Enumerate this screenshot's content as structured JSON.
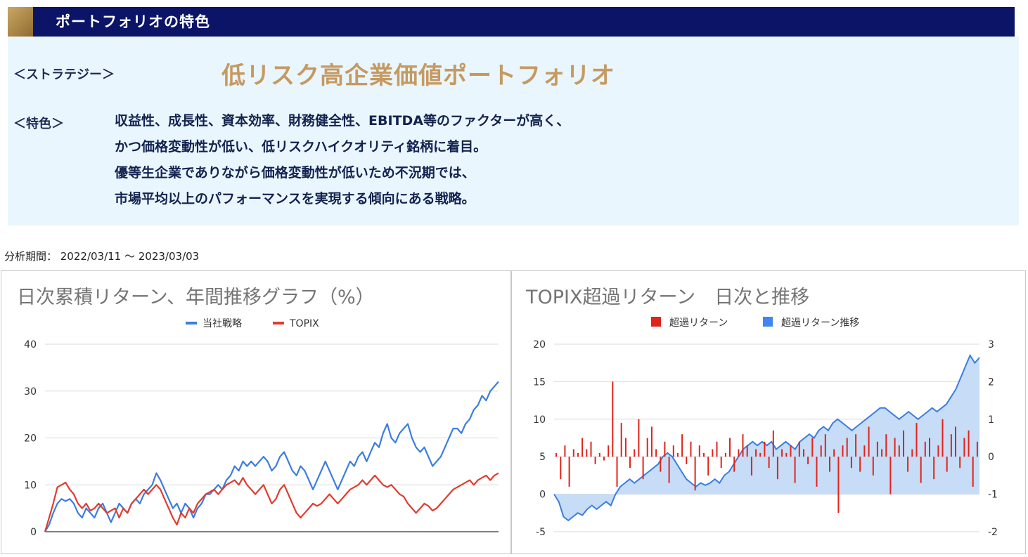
{
  "header": {
    "title": "ポートフォリオの特色"
  },
  "strategy": {
    "label": "＜ストラテジー＞",
    "name": "低リスク高企業価値ポートフォリオ"
  },
  "features": {
    "label": "＜特色＞",
    "lines": [
      "収益性、成長性、資本効率、財務健全性、EBITDA等のファクターが高く、",
      "かつ価格変動性が低い、低リスクハイクオリティ銘柄に着目。",
      "優等生企業でありながら価格変動性が低いため不況期では、",
      "市場平均以上のパフォーマンスを実現する傾向にある戦略。"
    ]
  },
  "period": "分析期間： 2022/03/11 ～ 2023/03/03",
  "colors": {
    "strategy_line": "#3b7de0",
    "topix_line": "#e23b2e",
    "excess_bar": "#e0241a",
    "excess_area_fill": "#c6dcf7",
    "excess_area_line": "#3b7de0",
    "header_bg": "#0b1466",
    "accent_gold": "#c59a62"
  },
  "chart_data": [
    {
      "type": "line",
      "title": "日次累積リターン、年間推移グラフ（%）",
      "legend_position": "top",
      "grid": true,
      "ylim": [
        0,
        40
      ],
      "yticks": [
        0,
        10,
        20,
        30,
        40
      ],
      "series": [
        {
          "name": "当社戦略",
          "values": [
            0,
            1.5,
            4,
            6,
            7,
            6.5,
            7,
            6,
            4,
            3,
            5,
            4,
            3,
            5,
            6,
            4,
            2,
            4,
            6,
            5,
            4,
            6,
            7,
            6,
            8,
            9,
            10,
            12.5,
            11,
            9,
            7,
            5,
            6,
            4,
            6,
            5,
            3,
            5,
            6,
            8,
            8,
            9,
            10,
            9,
            11,
            12,
            14,
            13,
            15,
            14,
            15,
            14,
            15,
            16,
            15,
            13,
            14,
            16,
            17,
            15,
            13,
            12,
            14,
            13,
            11,
            9,
            11,
            13,
            15,
            13,
            11,
            9,
            11,
            13,
            15,
            14,
            16,
            17,
            15,
            17,
            19,
            18,
            21,
            23,
            20,
            19,
            21,
            22,
            23,
            20,
            18,
            17,
            18,
            16,
            14,
            15,
            16,
            18,
            20,
            22,
            22,
            21,
            23,
            24,
            26,
            27,
            29,
            28,
            30,
            31,
            32
          ]
        },
        {
          "name": "TOPIX",
          "values": [
            0,
            3,
            6,
            9.5,
            10,
            10.5,
            9,
            8,
            6,
            5,
            6,
            4.5,
            5,
            6,
            5,
            4,
            4.5,
            5,
            3,
            5,
            4,
            6,
            7,
            8,
            9,
            8,
            9,
            10,
            9,
            7,
            5,
            3,
            1.5,
            4,
            3,
            5,
            4,
            6,
            7,
            8,
            8.5,
            9,
            8,
            9,
            10,
            10.5,
            11,
            10,
            11.5,
            10,
            9,
            8,
            9,
            10,
            8,
            6,
            7,
            9,
            10,
            8,
            6,
            4,
            3,
            4,
            5,
            6,
            5.5,
            6,
            7,
            8,
            7,
            6,
            7,
            8,
            9,
            9.5,
            10,
            11,
            10,
            11,
            12,
            11,
            10,
            9.5,
            10,
            9,
            8,
            7.5,
            6,
            5,
            4,
            5,
            6,
            5.5,
            4.5,
            5,
            6,
            7,
            8,
            9,
            9.5,
            10,
            10.5,
            11,
            10,
            11,
            11.5,
            12,
            11,
            12,
            12.5
          ]
        }
      ]
    },
    {
      "type": "bar",
      "title": "TOPIX超過リターン　日次と推移",
      "legend_position": "top",
      "grid": true,
      "ylim_left": [
        -5,
        20
      ],
      "yticks_left": [
        -5,
        0,
        5,
        10,
        15,
        20
      ],
      "ylim_right": [
        -2,
        3
      ],
      "yticks_right": [
        -2,
        -1,
        0,
        1,
        2,
        3
      ],
      "series": [
        {
          "name": "超過リターン",
          "axis": "right",
          "values": [
            0.1,
            -0.6,
            0.3,
            -0.8,
            0.2,
            0.1,
            0.5,
            0.2,
            0.4,
            -0.2,
            0.1,
            -0.1,
            0.3,
            2.0,
            -0.8,
            0.9,
            0.5,
            -0.3,
            0.2,
            1.0,
            -0.6,
            0.5,
            0.8,
            0.2,
            -0.4,
            0.4,
            -0.7,
            0.3,
            0.1,
            0.6,
            -0.2,
            0.4,
            -0.9,
            0.3,
            0.1,
            -0.5,
            0.2,
            0.4,
            -0.3,
            0.1,
            0.5,
            -0.4,
            0.2,
            0.6,
            0.3,
            -0.5,
            0.2,
            0.1,
            0.4,
            -0.3,
            0.7,
            -0.6,
            0.2,
            0.1,
            0.3,
            -0.7,
            0.4,
            0.2,
            -0.2,
            0.5,
            -0.8,
            0.3,
            0.6,
            -0.4,
            0.2,
            -1.5,
            0.3,
            0.5,
            -0.3,
            0.6,
            -0.4,
            0.3,
            0.8,
            -0.5,
            0.4,
            0.2,
            0.6,
            -1.0,
            0.5,
            0.3,
            0.7,
            -0.4,
            0.2,
            0.9,
            -0.7,
            0.4,
            0.5,
            -0.6,
            0.3,
            1.0,
            -0.4,
            0.6,
            0.8,
            -0.3,
            0.5,
            0.7,
            -0.8,
            0.4
          ]
        },
        {
          "name": "超過リターン推移",
          "axis": "left",
          "type": "area",
          "values": [
            0,
            -1,
            -3,
            -3.5,
            -3,
            -2.5,
            -2.8,
            -2,
            -1.5,
            -2,
            -1.5,
            -1,
            -1.5,
            0,
            1,
            1.5,
            2,
            1.5,
            2,
            2.5,
            3,
            3.5,
            4,
            5,
            5.5,
            5,
            4,
            3,
            2,
            1.5,
            1,
            1.5,
            1.2,
            1.5,
            2,
            1.5,
            2.5,
            3,
            4,
            5,
            6,
            6.5,
            7,
            6.5,
            7,
            6.5,
            7,
            6,
            6.5,
            7,
            6.5,
            6,
            7,
            7.5,
            8,
            7.5,
            8.5,
            9,
            8.5,
            9.5,
            10,
            9.5,
            9,
            8.5,
            9,
            9.5,
            10,
            10.5,
            11,
            11.5,
            11.5,
            11,
            10.5,
            10,
            10.5,
            11,
            10.5,
            10,
            10.5,
            11,
            11.5,
            11,
            11.5,
            12,
            13,
            14,
            15.5,
            17,
            18.5,
            17.5,
            18.2
          ]
        }
      ]
    }
  ]
}
